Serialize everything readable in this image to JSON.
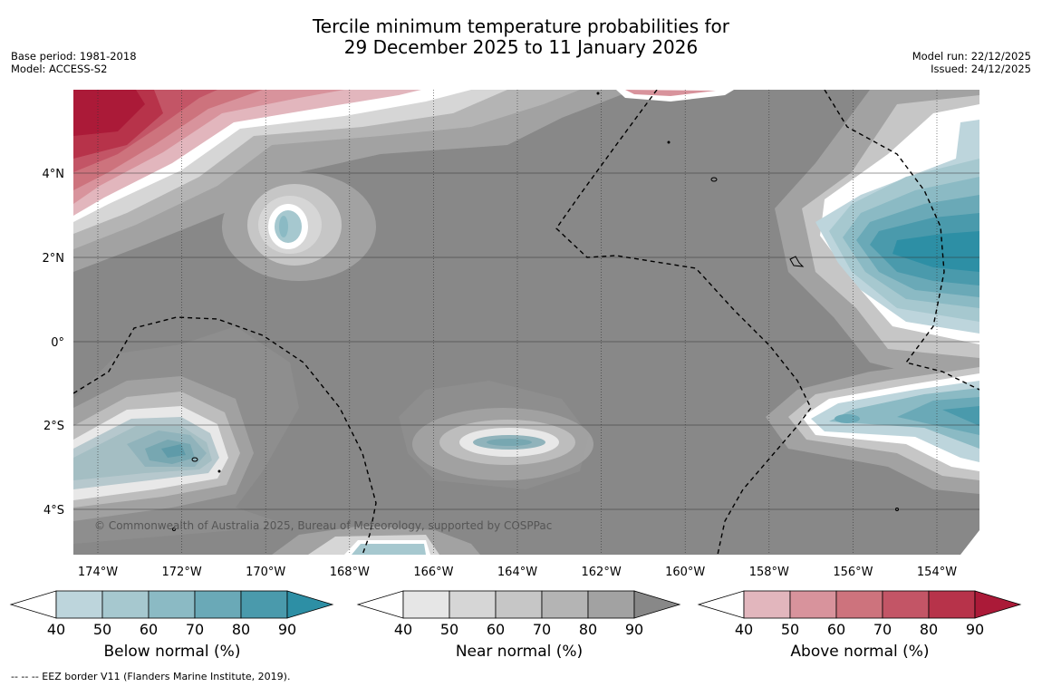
{
  "title": {
    "line1": "Tercile minimum temperature probabilities for",
    "line2": "29 December 2025 to 11 January 2026"
  },
  "meta": {
    "base_period": "Base period: 1981-2018",
    "model": "Model: ACCESS-S2",
    "model_run": "Model run: 22/12/2025",
    "issued": "Issued: 24/12/2025"
  },
  "map": {
    "lon_labels": [
      "174°W",
      "172°W",
      "170°W",
      "168°W",
      "166°W",
      "164°W",
      "162°W",
      "160°W",
      "158°W",
      "156°W",
      "154°W"
    ],
    "lat_labels": [
      "4°N",
      "2°N",
      "0°",
      "2°S",
      "4°S"
    ],
    "copyright": "© Commonwealth of Australia 2025, Bureau of Meteorology, supported by COSPPac"
  },
  "legends": [
    {
      "title": "Below normal (%)",
      "ticks": [
        "40",
        "50",
        "60",
        "70",
        "80",
        "90"
      ],
      "colors": [
        "#bdd5dc",
        "#a6c8cf",
        "#8bbac4",
        "#6aa9b7",
        "#4a9aac",
        "#2d8fa5"
      ]
    },
    {
      "title": "Near normal (%)",
      "ticks": [
        "40",
        "50",
        "60",
        "70",
        "80",
        "90"
      ],
      "colors": [
        "#e6e6e6",
        "#d6d6d6",
        "#c6c6c6",
        "#b4b4b4",
        "#a2a2a2",
        "#888888"
      ]
    },
    {
      "title": "Above normal (%)",
      "ticks": [
        "40",
        "50",
        "60",
        "70",
        "80",
        "90"
      ],
      "colors": [
        "#e2b6bd",
        "#d8939c",
        "#cd737d",
        "#c35566",
        "#b7334a",
        "#ab1a38"
      ]
    }
  ],
  "footnote": "--  --  -- EEZ border V11 (Flanders Marine Institute, 2019)."
}
